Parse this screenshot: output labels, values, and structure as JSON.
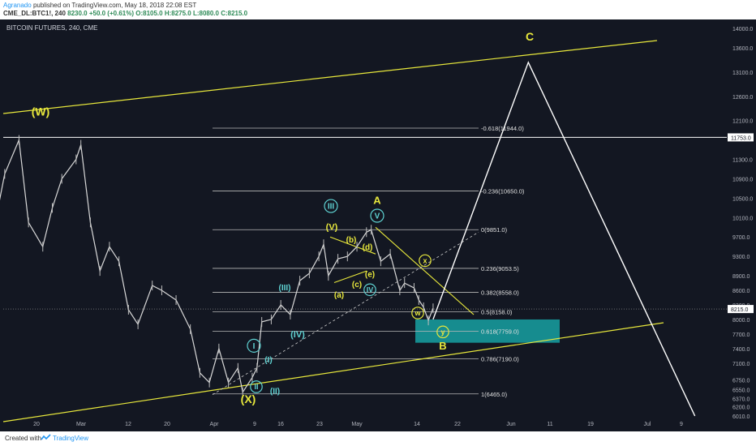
{
  "header": {
    "author": "Agranado",
    "published": "published on TradingView.com, May 18, 2018 22:08 EST",
    "symbol": "CME_DL:BTC1!, 240",
    "last": "8230.0",
    "change": "+50.0 (+0.61%)",
    "ohlc": "O:8105.0 H:8275.0 L:8080.0 C:8215.0"
  },
  "footer": {
    "created_with": "Created with",
    "brand": "TradingView"
  },
  "chart_data": {
    "type": "line",
    "title": "BITCOIN FUTURES, 240, CME",
    "x_tick_labels": [
      "20",
      "Mar",
      "12",
      "20",
      "Apr",
      "9",
      "16",
      "23",
      "May",
      "14",
      "22",
      "Jun",
      "11",
      "19",
      "Jul",
      "9"
    ],
    "y_tick_labels": [
      14000,
      13600,
      13100,
      12600,
      12100,
      11753,
      11300,
      10900,
      10500,
      10100,
      9700,
      9300,
      8900,
      8600,
      8300,
      8000,
      7700,
      7400,
      7100,
      6750,
      6550,
      6370,
      6200,
      6010
    ],
    "last_price_label": "8215.0",
    "fib_levels": [
      {
        "label": "-0.618(11944.0)",
        "value": 11944.0
      },
      {
        "label": "-0.236(10650.0)",
        "value": 10650.0
      },
      {
        "label": "0(9851.0)",
        "value": 9851.0
      },
      {
        "label": "0.236(9053.5)",
        "value": 9053.5
      },
      {
        "label": "0.382(8558.0)",
        "value": 8558.0
      },
      {
        "label": "0.5(8158.0)",
        "value": 8158.0
      },
      {
        "label": "0.618(7759.0)",
        "value": 7759.0
      },
      {
        "label": "0.786(7190.0)",
        "value": 7190.0
      },
      {
        "label": "1(6465.0)",
        "value": 6465.0
      }
    ],
    "horizontal_line": 11753.0,
    "price_series": [
      {
        "date": "2018-02-04",
        "close": 8400
      },
      {
        "date": "2018-02-06",
        "close": 6800
      },
      {
        "date": "2018-02-09",
        "close": 8400
      },
      {
        "date": "2018-02-12",
        "close": 8600
      },
      {
        "date": "2018-02-15",
        "close": 10000
      },
      {
        "date": "2018-02-17",
        "close": 11000
      },
      {
        "date": "2018-02-20",
        "close": 11700
      },
      {
        "date": "2018-02-22",
        "close": 10000
      },
      {
        "date": "2018-02-25",
        "close": 9500
      },
      {
        "date": "2018-02-27",
        "close": 10300
      },
      {
        "date": "2018-03-01",
        "close": 10900
      },
      {
        "date": "2018-03-04",
        "close": 11300
      },
      {
        "date": "2018-03-05",
        "close": 11600
      },
      {
        "date": "2018-03-07",
        "close": 10000
      },
      {
        "date": "2018-03-09",
        "close": 9000
      },
      {
        "date": "2018-03-11",
        "close": 9500
      },
      {
        "date": "2018-03-13",
        "close": 9200
      },
      {
        "date": "2018-03-15",
        "close": 8200
      },
      {
        "date": "2018-03-17",
        "close": 7900
      },
      {
        "date": "2018-03-20",
        "close": 8700
      },
      {
        "date": "2018-03-22",
        "close": 8600
      },
      {
        "date": "2018-03-25",
        "close": 8400
      },
      {
        "date": "2018-03-28",
        "close": 7800
      },
      {
        "date": "2018-03-30",
        "close": 6900
      },
      {
        "date": "2018-04-01",
        "close": 6700
      },
      {
        "date": "2018-04-03",
        "close": 7400
      },
      {
        "date": "2018-04-05",
        "close": 6700
      },
      {
        "date": "2018-04-07",
        "close": 7000
      },
      {
        "date": "2018-04-08",
        "close": 6500
      },
      {
        "date": "2018-04-10",
        "close": 6800
      },
      {
        "date": "2018-04-11",
        "close": 7000
      },
      {
        "date": "2018-04-12",
        "close": 7950
      },
      {
        "date": "2018-04-14",
        "close": 8000
      },
      {
        "date": "2018-04-16",
        "close": 8300
      },
      {
        "date": "2018-04-18",
        "close": 8100
      },
      {
        "date": "2018-04-20",
        "close": 8800
      },
      {
        "date": "2018-04-22",
        "close": 8950
      },
      {
        "date": "2018-04-24",
        "close": 9300
      },
      {
        "date": "2018-04-25",
        "close": 9550
      },
      {
        "date": "2018-04-26",
        "close": 8900
      },
      {
        "date": "2018-04-28",
        "close": 9250
      },
      {
        "date": "2018-04-30",
        "close": 9300
      },
      {
        "date": "2018-05-02",
        "close": 9500
      },
      {
        "date": "2018-05-04",
        "close": 9800
      },
      {
        "date": "2018-05-05",
        "close": 9850
      },
      {
        "date": "2018-05-07",
        "close": 9200
      },
      {
        "date": "2018-05-09",
        "close": 9350
      },
      {
        "date": "2018-05-11",
        "close": 8600
      },
      {
        "date": "2018-05-12",
        "close": 8750
      },
      {
        "date": "2018-05-14",
        "close": 8650
      },
      {
        "date": "2018-05-15",
        "close": 8400
      },
      {
        "date": "2018-05-16",
        "close": 8250
      },
      {
        "date": "2018-05-17",
        "close": 7980
      },
      {
        "date": "2018-05-18",
        "close": 8230
      }
    ],
    "projection": [
      {
        "date": "2018-05-18",
        "value": 8000
      },
      {
        "date": "2018-06-07",
        "value": 13300
      },
      {
        "date": "2018-07-12",
        "value": 6010
      }
    ],
    "wave_labels": [
      "(W)",
      "(X)",
      "(Y)",
      "A",
      "B",
      "C",
      "I",
      "II",
      "III",
      "IV",
      "V",
      "(I)",
      "(II)",
      "(III)",
      "(IV)",
      "(V)",
      "(a)",
      "(b)",
      "(c)",
      "(d)",
      "(e)",
      "w",
      "x",
      "y"
    ]
  }
}
